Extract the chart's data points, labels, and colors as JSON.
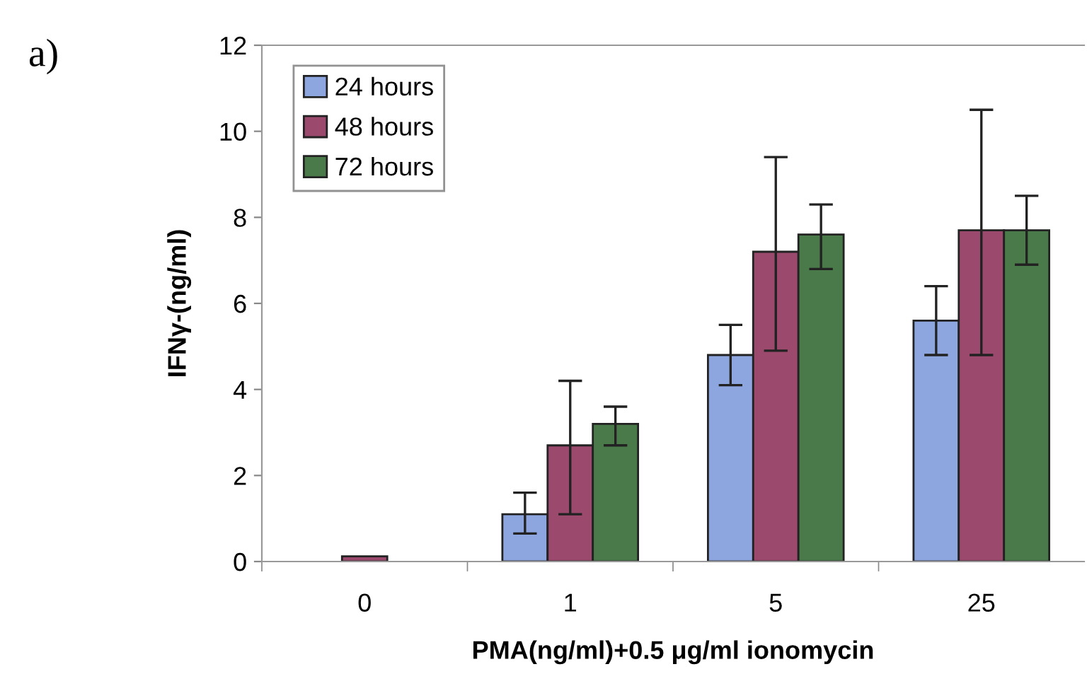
{
  "chart_data": {
    "type": "bar",
    "xlabel": "PMA(ng/ml)+0.5 μg/ml ionomycin",
    "ylabel": "IFNγ-(ng/ml)",
    "annotations": [
      "a)"
    ],
    "categories": [
      "0",
      "1",
      "5",
      "25"
    ],
    "series": [
      {
        "name": "24 hours",
        "color": "#8ea6e0",
        "values": [
          null,
          1.1,
          4.8,
          5.6
        ],
        "errors": [
          null,
          [
            0.65,
            1.6
          ],
          [
            4.1,
            5.5
          ],
          [
            4.8,
            6.4
          ]
        ]
      },
      {
        "name": "48 hours",
        "color": "#9b4a6e",
        "values": [
          0.12,
          2.7,
          7.2,
          7.7
        ],
        "errors": [
          null,
          [
            1.1,
            4.2
          ],
          [
            4.9,
            9.4
          ],
          [
            4.8,
            10.5
          ]
        ]
      },
      {
        "name": "72 hours",
        "color": "#4a7a4a",
        "values": [
          null,
          3.2,
          7.6,
          7.7
        ],
        "errors": [
          null,
          [
            2.7,
            3.6
          ],
          [
            6.8,
            8.3
          ],
          [
            6.9,
            8.5
          ]
        ]
      }
    ],
    "ylim": [
      0,
      12
    ],
    "yticks": [
      0,
      2,
      4,
      6,
      8,
      10,
      12
    ],
    "legend": "top left",
    "grid": false
  }
}
